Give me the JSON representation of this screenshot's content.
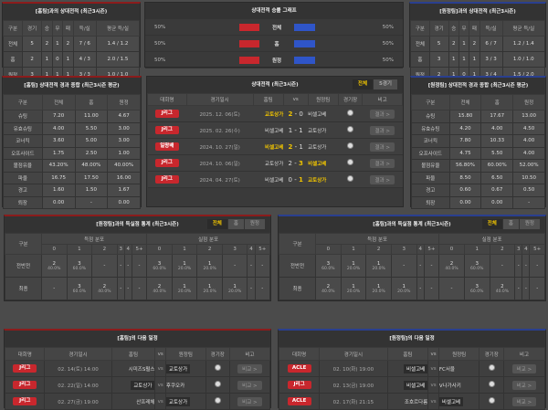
{
  "h2h_home": {
    "title": "[홈팀]과의 상대전적 (최근3시즌)",
    "headers": [
      "구분",
      "경기",
      "승",
      "무",
      "패",
      "득/실",
      "평균 득/실"
    ],
    "rows": [
      [
        "전체",
        "5",
        "2",
        "1",
        "2",
        "7 / 6",
        "1.4 / 1.2"
      ],
      [
        "홈",
        "2",
        "1",
        "0",
        "1",
        "4 / 3",
        "2.0 / 1.5"
      ],
      [
        "원정",
        "3",
        "1",
        "1",
        "1",
        "3 / 3",
        "1.0 / 1.0"
      ]
    ]
  },
  "h2h_away": {
    "title": "[원정팀]과의 상대전적 (최근3시즌)",
    "headers": [
      "구분",
      "경기",
      "승",
      "무",
      "패",
      "득/실",
      "평균 득/실"
    ],
    "rows": [
      [
        "전체",
        "5",
        "2",
        "1",
        "2",
        "6 / 7",
        "1.2 / 1.4"
      ],
      [
        "홈",
        "3",
        "1",
        "1",
        "1",
        "3 / 3",
        "1.0 / 1.0"
      ],
      [
        "원정",
        "2",
        "1",
        "0",
        "1",
        "3 / 4",
        "1.5 / 2.0"
      ]
    ]
  },
  "graph": {
    "title": "상대전적 승률 그래프",
    "colors": {
      "home": "#c8272d",
      "away": "#2f55c8"
    },
    "rows": [
      {
        "label": "전체",
        "home": "50%",
        "away": "50%",
        "home_pct": 50,
        "away_pct": 50
      },
      {
        "label": "홈",
        "home": "50%",
        "away": "50%",
        "home_pct": 50,
        "away_pct": 50
      },
      {
        "label": "원정",
        "home": "50%",
        "away": "50%",
        "home_pct": 50,
        "away_pct": 50
      }
    ]
  },
  "stats_home": {
    "title": "[홈팀] 상대전적 경과 종합 (최근3시즌 평균)",
    "headers": [
      "구분",
      "전체",
      "홈",
      "원정"
    ],
    "rows": [
      [
        "슈팅",
        "7.20",
        "11.00",
        "4.67"
      ],
      [
        "유효슈팅",
        "4.00",
        "5.50",
        "3.00"
      ],
      [
        "코너킥",
        "3.60",
        "5.00",
        "3.00"
      ],
      [
        "오프사이드",
        "1.75",
        "2.50",
        "1.00"
      ],
      [
        "볼점유율",
        "43.20%",
        "48.00%",
        "40.00%"
      ],
      [
        "파울",
        "16.75",
        "17.50",
        "16.00"
      ],
      [
        "경고",
        "1.60",
        "1.50",
        "1.67"
      ],
      [
        "퇴장",
        "0.00",
        "-",
        "0.00"
      ]
    ]
  },
  "stats_away": {
    "title": "[원정팀] 상대전적 경과 종합 (최근3시즌 평균)",
    "headers": [
      "구분",
      "전체",
      "홈",
      "원정"
    ],
    "rows": [
      [
        "슈팅",
        "15.80",
        "17.67",
        "13.00"
      ],
      [
        "유효슈팅",
        "4.20",
        "4.00",
        "4.50"
      ],
      [
        "코너킥",
        "7.80",
        "10.33",
        "4.00"
      ],
      [
        "오프사이드",
        "4.75",
        "5.50",
        "4.00"
      ],
      [
        "볼점유율",
        "56.80%",
        "60.00%",
        "52.00%"
      ],
      [
        "파울",
        "8.50",
        "6.50",
        "10.50"
      ],
      [
        "경고",
        "0.60",
        "0.67",
        "0.50"
      ],
      [
        "퇴장",
        "0.00",
        "0.00",
        "-"
      ]
    ]
  },
  "matches": {
    "title": "상대전적 (최근3시즌)",
    "tabs": [
      "전체",
      "5경기"
    ],
    "headers": [
      "대회명",
      "경기일시",
      "홈팀",
      "vs",
      "원정팀",
      "경기장",
      "비고"
    ],
    "rows": [
      {
        "comp": "J리그",
        "date": "2025. 12. 06(토)",
        "home": "교토상가",
        "hs": "2",
        "as": "0",
        "away": "비셀고베",
        "win": "home",
        "btn": "결과 >"
      },
      {
        "comp": "J리그",
        "date": "2025. 02. 26(수)",
        "home": "비셀고베",
        "hs": "1",
        "as": "1",
        "away": "교토상가",
        "win": "",
        "btn": "결과 >"
      },
      {
        "comp": "일왕배",
        "date": "2024. 10. 27(일)",
        "home": "비셀고베",
        "hs": "2",
        "as": "1",
        "away": "교토상가",
        "win": "home",
        "btn": "결과 >"
      },
      {
        "comp": "J리그",
        "date": "2024. 10. 06(일)",
        "home": "교토상가",
        "hs": "2",
        "as": "3",
        "away": "비셀고베",
        "win": "away",
        "btn": "결과 >"
      },
      {
        "comp": "J리그",
        "date": "2024. 04. 27(토)",
        "home": "비셀고베",
        "hs": "0",
        "as": "1",
        "away": "교토상가",
        "win": "away",
        "btn": "결과 >"
      }
    ]
  },
  "goals_away": {
    "title": "[원정팀]과의 득실점 통계 (최근3시즌)",
    "tabs": [
      "전체",
      "홈",
      "원정"
    ],
    "group_labels": [
      "구분",
      "득점 분포",
      "실점 분포"
    ],
    "cols": [
      "0",
      "1",
      "2",
      "3",
      "4",
      "5+",
      "0",
      "1",
      "2",
      "3",
      "4",
      "5+"
    ],
    "rows": [
      {
        "label": "전반전",
        "cells": [
          [
            "2",
            "40.0%"
          ],
          [
            "3",
            "60.0%"
          ],
          [
            "-",
            ""
          ],
          [
            "-",
            ""
          ],
          [
            "-",
            ""
          ],
          [
            "-",
            ""
          ],
          [
            "3",
            "60.0%"
          ],
          [
            "1",
            "20.0%"
          ],
          [
            "1",
            "20.0%"
          ],
          [
            "-",
            ""
          ],
          [
            "-",
            ""
          ],
          [
            "-",
            ""
          ]
        ]
      },
      {
        "label": "최종",
        "cells": [
          [
            "-",
            ""
          ],
          [
            "3",
            "60.0%"
          ],
          [
            "2",
            "40.0%"
          ],
          [
            "-",
            ""
          ],
          [
            "-",
            ""
          ],
          [
            "-",
            ""
          ],
          [
            "2",
            "40.0%"
          ],
          [
            "1",
            "20.0%"
          ],
          [
            "1",
            "20.0%"
          ],
          [
            "1",
            "20.0%"
          ],
          [
            "-",
            ""
          ],
          [
            "-",
            ""
          ]
        ]
      }
    ]
  },
  "goals_home": {
    "title": "[홈팀]과의 득실점 통계 (최근3시즌)",
    "tabs": [
      "전체",
      "홈",
      "원정"
    ],
    "group_labels": [
      "구분",
      "득점 분포",
      "실점 분포"
    ],
    "cols": [
      "0",
      "1",
      "2",
      "3",
      "4",
      "5+",
      "0",
      "1",
      "2",
      "3",
      "4",
      "5+"
    ],
    "rows": [
      {
        "label": "전반전",
        "cells": [
          [
            "3",
            "60.0%"
          ],
          [
            "1",
            "20.0%"
          ],
          [
            "1",
            "20.0%"
          ],
          [
            "-",
            ""
          ],
          [
            "-",
            ""
          ],
          [
            "-",
            ""
          ],
          [
            "2",
            "40.0%"
          ],
          [
            "3",
            "60.0%"
          ],
          [
            "-",
            ""
          ],
          [
            "-",
            ""
          ],
          [
            "-",
            ""
          ],
          [
            "-",
            ""
          ]
        ]
      },
      {
        "label": "최종",
        "cells": [
          [
            "2",
            "40.0%"
          ],
          [
            "1",
            "20.0%"
          ],
          [
            "1",
            "20.0%"
          ],
          [
            "1",
            "20.0%"
          ],
          [
            "-",
            ""
          ],
          [
            "-",
            ""
          ],
          [
            "-",
            ""
          ],
          [
            "3",
            "60.0%"
          ],
          [
            "2",
            "40.0%"
          ],
          [
            "-",
            ""
          ],
          [
            "-",
            ""
          ],
          [
            "-",
            ""
          ]
        ]
      }
    ]
  },
  "next_home": {
    "title": "[홈팀]의 다음 일정",
    "headers": [
      "대회명",
      "경기일시",
      "홈팀",
      "vs",
      "원정팀",
      "경기장",
      "비고"
    ],
    "rows": [
      {
        "comp": "J리그",
        "date": "02. 14(토) 14:00",
        "home": "시미즈S펄스",
        "away": "교토상가",
        "box": "away",
        "btn": "비교 >"
      },
      {
        "comp": "J리그",
        "date": "02. 22(일) 14:00",
        "home": "교토상가",
        "away": "후쿠오카",
        "box": "home",
        "btn": "비교 >"
      },
      {
        "comp": "J리그",
        "date": "02. 27(금) 19:00",
        "home": "산프레체",
        "away": "교토상가",
        "box": "away",
        "btn": "비교 >"
      }
    ]
  },
  "next_away": {
    "title": "[원정팀]의 다음 일정",
    "headers": [
      "대회명",
      "경기일시",
      "홈팀",
      "vs",
      "원정팀",
      "경기장",
      "비고"
    ],
    "rows": [
      {
        "comp": "ACLE",
        "date": "02. 10(화) 19:00",
        "home": "비셀고베",
        "away": "FC서울",
        "box": "home",
        "btn": "비교 >"
      },
      {
        "comp": "J리그",
        "date": "02. 13(금) 19:00",
        "home": "비셀고베",
        "away": "V나가사키",
        "box": "home",
        "btn": "비교 >"
      },
      {
        "comp": "ACLE",
        "date": "02. 17(화) 21:15",
        "home": "조호르다룸",
        "away": "비셀고베",
        "box": "away",
        "btn": "비교 >"
      }
    ]
  }
}
